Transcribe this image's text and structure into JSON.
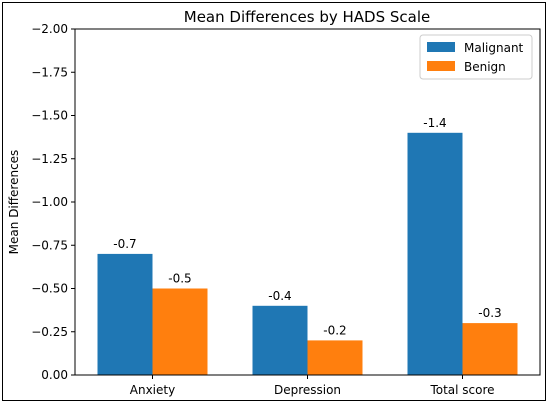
{
  "chart_data": {
    "type": "bar",
    "title": "Mean Differences by HADS Scale",
    "xlabel": "",
    "ylabel": "Mean Differences",
    "categories": [
      "Anxiety",
      "Depression",
      "Total score"
    ],
    "series": [
      {
        "name": "Malignant",
        "color": "#1f77b4",
        "values": [
          -0.7,
          -0.4,
          -1.4
        ],
        "labels": [
          "-0.7",
          "-0.4",
          "-1.4"
        ]
      },
      {
        "name": "Benign",
        "color": "#ff7f0e",
        "values": [
          -0.5,
          -0.2,
          -0.3
        ],
        "labels": [
          "-0.5",
          "-0.2",
          "-0.3"
        ]
      }
    ],
    "ylim": [
      0,
      -2.0
    ],
    "y_axis_inverted": true,
    "yticks": [
      0.0,
      -0.25,
      -0.5,
      -0.75,
      -1.0,
      -1.25,
      -1.5,
      -1.75,
      -2.0
    ],
    "ytick_labels": [
      "0.00",
      "−0.25",
      "−0.50",
      "−0.75",
      "−1.00",
      "−1.25",
      "−1.50",
      "−1.75",
      "−2.00"
    ],
    "grid": false,
    "legend_position": "top-right"
  }
}
